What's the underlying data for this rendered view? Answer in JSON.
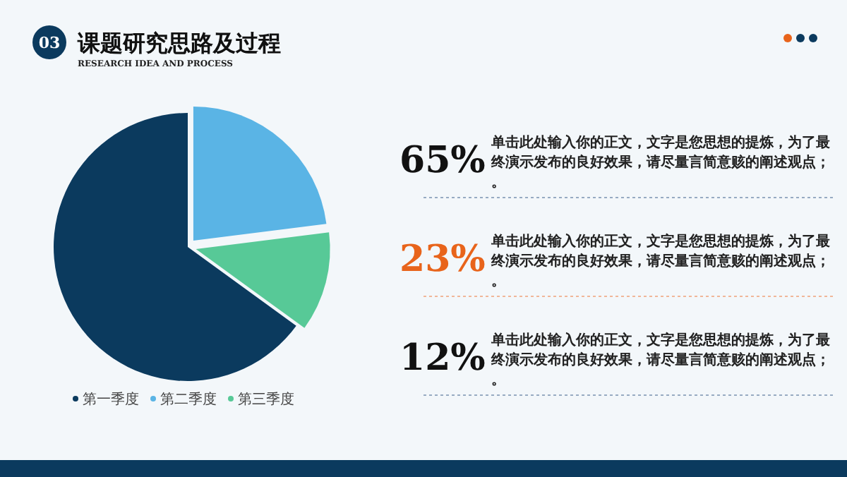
{
  "chart_data": {
    "type": "pie",
    "title": "课题研究思路及过程",
    "subtitle": "RESEARCH IDEA AND PROCESS",
    "categories": [
      "第一季度",
      "第二季度",
      "第三季度"
    ],
    "values": [
      65,
      23,
      12
    ],
    "colors": [
      "#0b3a5e",
      "#5ab4e5",
      "#57c997"
    ],
    "legend": "bottom",
    "annotations": [
      "03",
      "65%",
      "单击此处输入你的正文，文字是您思想的提炼，为了最终演示发布的良好效果，请尽量言简意赅的阐述观点；。",
      "23%",
      "单击此处输入你的正文，文字是您思想的提炼，为了最终演示发布的良好效果，请尽量言简意赅的阐述观点；。",
      "12%",
      "单击此处输入你的正文，文字是您思想的提炼，为了最终演示发布的良好效果，请尽量言简意赅的阐述观点；。"
    ]
  }
}
